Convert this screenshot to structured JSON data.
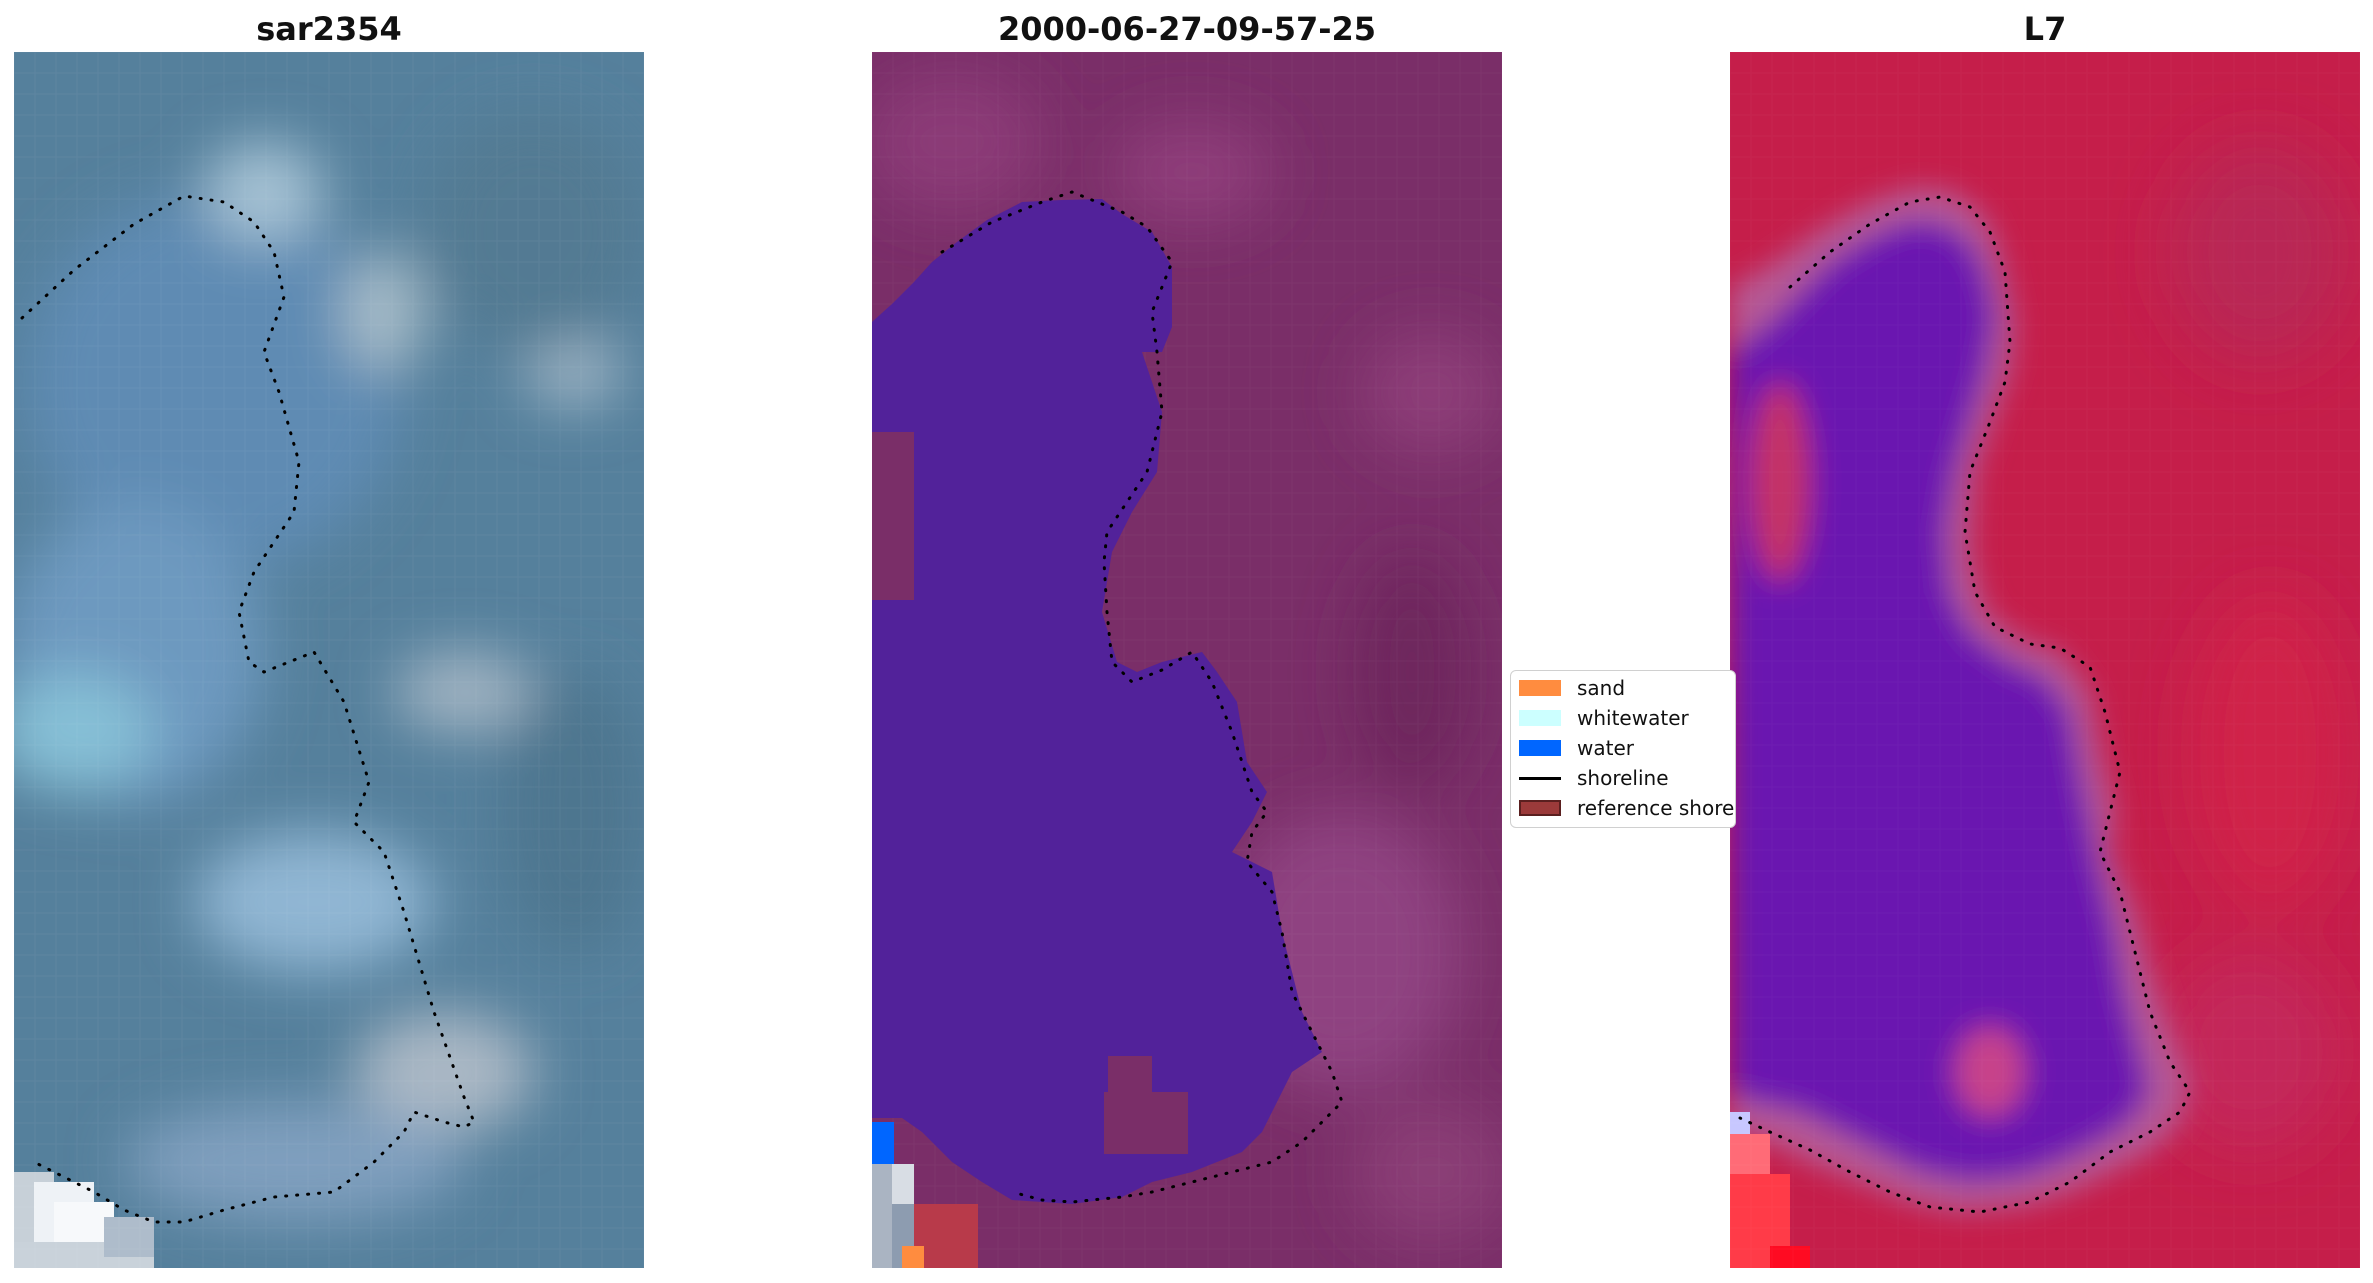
{
  "figure": {
    "titles": [
      "sar2354",
      "2000-06-27-09-57-25",
      "L7"
    ]
  },
  "legend": {
    "entries": [
      {
        "label": "sand",
        "kind": "patch",
        "color": "#ff8c3f"
      },
      {
        "label": "whitewater",
        "kind": "patch",
        "color": "#ccffff"
      },
      {
        "label": "water",
        "kind": "patch",
        "color": "#0066ff"
      },
      {
        "label": "shoreline",
        "kind": "line",
        "color": "#000000"
      },
      {
        "label": "reference shoreline",
        "kind": "patch",
        "color": "#9b3a3a",
        "edge": "#5a1f1f"
      }
    ]
  },
  "chart_data": {
    "type": "heatmap",
    "panels": [
      {
        "title": "sar2354",
        "content": "RGB satellite image (blue/grey tones) with dotted shoreline overlay",
        "colors": {
          "base": "#4f7896",
          "light": "#8fb0c9",
          "white": "#e8edf2"
        }
      },
      {
        "title": "2000-06-27-09-57-25",
        "content": "classified image: water region (purple) over land with small sand, water and reference-shoreline pixels, dotted shoreline overlay",
        "colors": {
          "land": "#7a2e68",
          "water_region": "#52229a",
          "water": "#0066ff",
          "sand": "#ff8c3f",
          "reference": "#b83a4a"
        }
      },
      {
        "title": "L7",
        "content": "false-colour image: red land, purple water body, pink transition band, dotted shoreline overlay",
        "colors": {
          "land": "#c51e4a",
          "water_body": "#6a15b0",
          "band": "#b2508f"
        }
      }
    ],
    "legend_placement": "center-right",
    "grid": false
  }
}
